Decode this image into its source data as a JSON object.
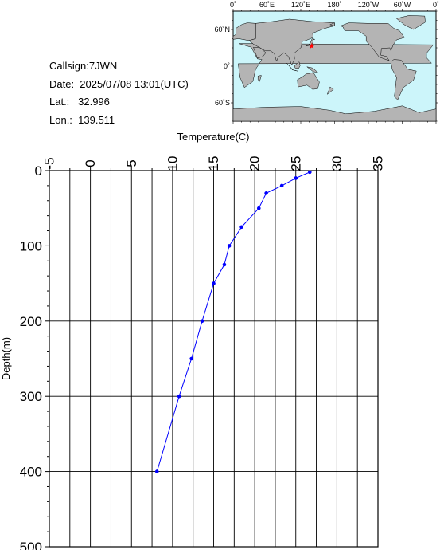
{
  "info": {
    "callsign": "Callsign:7JWN",
    "date": "Date:  2025/07/08 13:01(UTC)",
    "lat": "Lat.:   32.996",
    "lon": "Lon.:  139.511"
  },
  "map": {
    "lon_labels": [
      "0˚",
      "60˚E",
      "120˚E",
      "180˚",
      "120˚W",
      "60˚W",
      "0˚"
    ],
    "lat_labels": [
      "60˚N",
      "0˚",
      "60˚S"
    ],
    "station": {
      "lat": 32.996,
      "lon": 139.511
    },
    "colors": {
      "ocean": "#ccf5fa",
      "land": "#b4b4b4",
      "marker": "#ff0000"
    }
  },
  "chart_data": {
    "type": "line",
    "xlabel": "Temperature(C)",
    "ylabel": "Depth(m)",
    "xlim": [
      -5,
      35
    ],
    "ylim": [
      0,
      500
    ],
    "y_inverted": true,
    "x_axis_position": "top",
    "x_ticks": [
      -5,
      0,
      5,
      10,
      15,
      20,
      25,
      30,
      35
    ],
    "y_ticks": [
      0,
      100,
      200,
      300,
      400,
      500
    ],
    "grid": true,
    "line_color": "#0000ff",
    "series": [
      {
        "x": [
          26.7,
          25.0,
          23.3,
          21.4,
          20.5,
          18.4,
          16.9,
          16.3,
          15.0,
          13.6,
          12.3,
          10.8,
          8.1
        ],
        "y": [
          2,
          10,
          20,
          30,
          50,
          75,
          100,
          125,
          150,
          200,
          250,
          300,
          400
        ]
      }
    ]
  }
}
